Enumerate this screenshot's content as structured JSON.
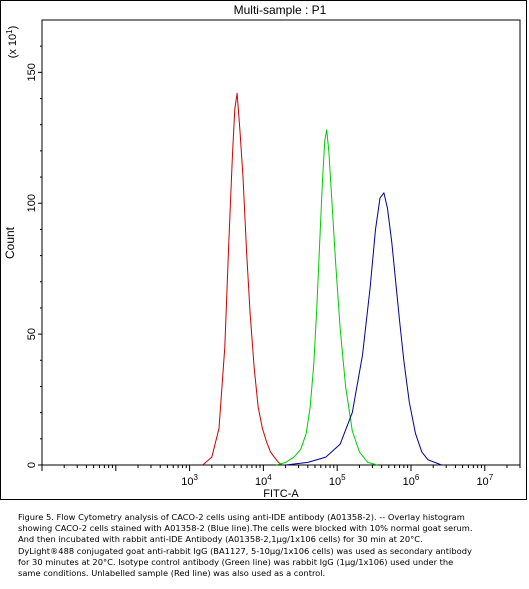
{
  "chart_data": {
    "type": "line",
    "title": "Multi-sample : P1",
    "xlabel": "FITC-A",
    "ylabel": "Count",
    "y_multiplier": "(x 10^1)",
    "x_scale": "log",
    "xlim": [
      10,
      30000000
    ],
    "ylim": [
      0,
      170
    ],
    "x_ticks": [
      {
        "exp": 3,
        "label": "10",
        "sup": "3"
      },
      {
        "exp": 4,
        "label": "10",
        "sup": "4"
      },
      {
        "exp": 5,
        "label": "10",
        "sup": "5"
      },
      {
        "exp": 6,
        "label": "10",
        "sup": "6"
      },
      {
        "exp": 7,
        "label": "10",
        "sup": "7"
      }
    ],
    "y_ticks": [
      0,
      50,
      100,
      150
    ],
    "series": [
      {
        "color": "#cc0000",
        "x": [
          1500,
          2000,
          2500,
          3000,
          3400,
          3800,
          4100,
          4400,
          4800,
          5300,
          5900,
          6600,
          7500,
          8500,
          9700,
          11000,
          12500,
          14000,
          16000,
          18000
        ],
        "y": [
          0,
          3,
          14,
          45,
          85,
          118,
          136,
          142,
          128,
          110,
          82,
          58,
          37,
          22,
          14,
          9,
          5,
          3,
          1,
          0
        ]
      },
      {
        "color": "#00cc00",
        "x": [
          15000,
          20000,
          26000,
          32000,
          38000,
          43000,
          48000,
          53000,
          58000,
          63000,
          68000,
          72000,
          77000,
          85000,
          95000,
          110000,
          130000,
          160000,
          200000,
          260000,
          350000
        ],
        "y": [
          0,
          1,
          3,
          6,
          12,
          22,
          38,
          60,
          85,
          108,
          124,
          128,
          120,
          100,
          78,
          52,
          30,
          13,
          5,
          1,
          0
        ]
      },
      {
        "color": "#000099",
        "x": [
          20000,
          40000,
          70000,
          110000,
          160000,
          220000,
          280000,
          330000,
          380000,
          430000,
          480000,
          550000,
          620000,
          700000,
          800000,
          950000,
          1150000,
          1400000,
          1700000,
          2100000,
          2600000
        ],
        "y": [
          0,
          1,
          3,
          8,
          20,
          42,
          68,
          90,
          102,
          104,
          98,
          85,
          70,
          55,
          40,
          24,
          12,
          5,
          2,
          1,
          0
        ]
      }
    ]
  },
  "caption": [
    "Figure 5. Flow Cytometry analysis of CACO-2 cells using anti-IDE antibody (A01358-2). -- Overlay histogram",
    "showing CACO-2 cells stained with A01358-2 (Blue line).The cells were blocked with 10% normal goat serum.",
    "And then incubated with rabbit anti-IDE Antibody (A01358-2,1μg/1x106 cells) for 30 min at 20°C.",
    "DyLight®488 conjugated goat anti-rabbit IgG (BA1127, 5-10μg/1x106 cells) was used as secondary antibody",
    "for 30 minutes at 20°C. Isotype control antibody (Green line) was rabbit IgG (1μg/1x106) used under the",
    "same conditions. Unlabelled sample (Red line) was also used as a control."
  ]
}
